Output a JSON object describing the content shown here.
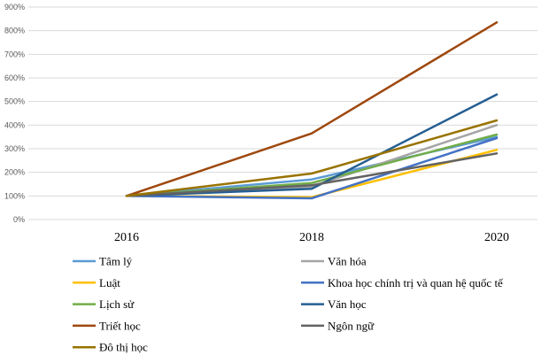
{
  "chart_data": {
    "type": "line",
    "title": "",
    "xlabel": "",
    "ylabel": "",
    "categories": [
      "2016",
      "2018",
      "2020"
    ],
    "ylim": [
      0,
      900
    ],
    "yticks": [
      0,
      100,
      200,
      300,
      400,
      500,
      600,
      700,
      800,
      900
    ],
    "y_tick_labels": [
      "0%",
      "100%",
      "200%",
      "300%",
      "400%",
      "500%",
      "600%",
      "700%",
      "800%",
      "900%"
    ],
    "grid": true,
    "legend_position": "bottom",
    "series": [
      {
        "name": "Tâm lý",
        "color": "#5b9bd5",
        "values": [
          100,
          170,
          350
        ]
      },
      {
        "name": "Văn hóa",
        "color": "#a5a5a5",
        "values": [
          100,
          140,
          400
        ]
      },
      {
        "name": "Luật",
        "color": "#ffc000",
        "values": [
          100,
          95,
          295
        ]
      },
      {
        "name": "Khoa học chính trị và quan hệ quốc tế",
        "color": "#4472c4",
        "values": [
          100,
          90,
          345
        ]
      },
      {
        "name": "Lịch sử",
        "color": "#70ad47",
        "values": [
          100,
          155,
          360
        ]
      },
      {
        "name": "Văn học",
        "color": "#255e91",
        "values": [
          100,
          130,
          530
        ]
      },
      {
        "name": "Triết học",
        "color": "#9e480e",
        "values": [
          100,
          365,
          835
        ]
      },
      {
        "name": "Ngôn ngữ",
        "color": "#636363",
        "values": [
          100,
          145,
          280
        ]
      },
      {
        "name": "Đô thị học",
        "color": "#997300",
        "values": [
          100,
          195,
          420
        ]
      }
    ]
  }
}
